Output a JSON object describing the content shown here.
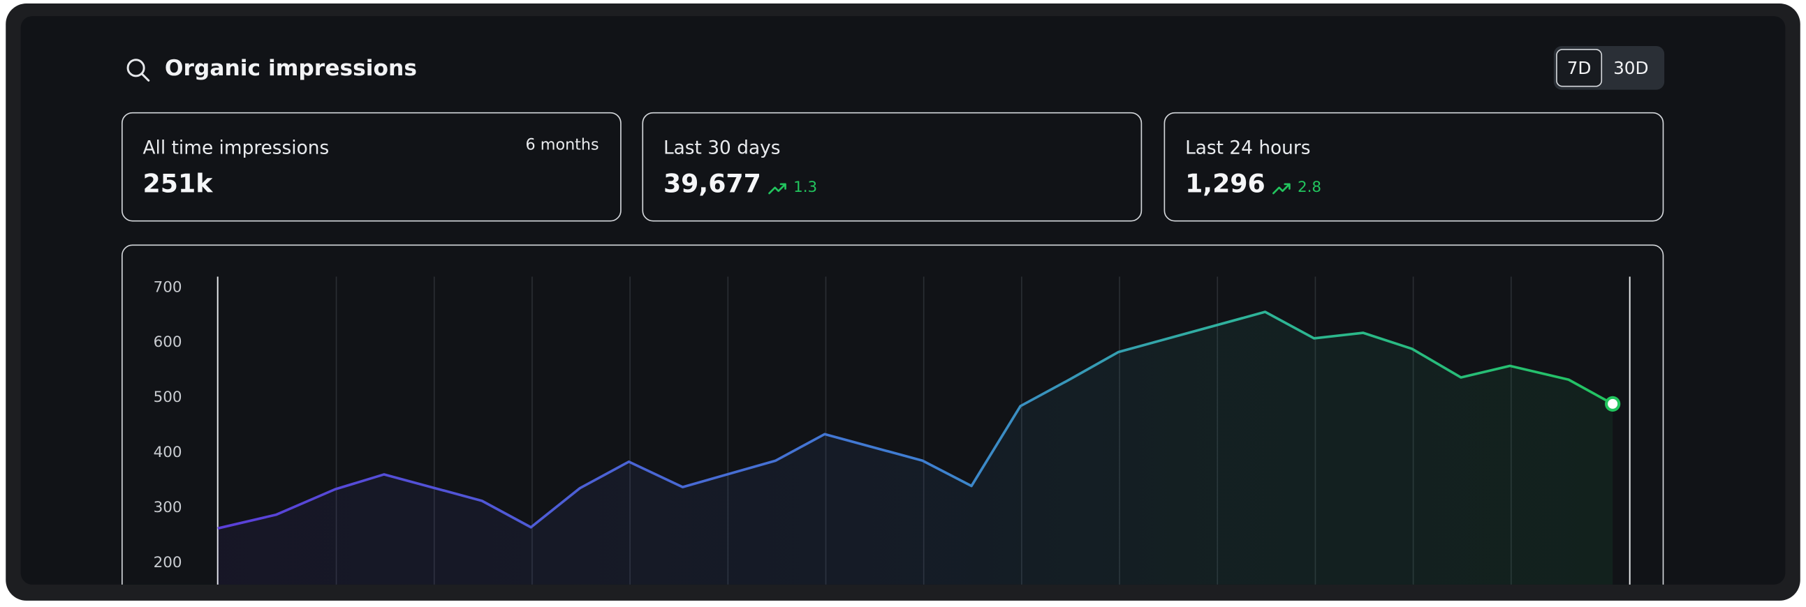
{
  "header": {
    "title": "Organic impressions",
    "ranges": [
      "7D",
      "30D"
    ],
    "selected_range": 0
  },
  "cards": [
    {
      "label": "All time impressions",
      "note": "6 months",
      "value": "251k"
    },
    {
      "label": "Last 30 days",
      "value": "39,677",
      "change": "1.3"
    },
    {
      "label": "Last 24 hours",
      "value": "1,296",
      "change": "2.8"
    }
  ],
  "chart_data": {
    "type": "line",
    "x": [
      0,
      1.2,
      2.4,
      3.4,
      5.4,
      6.4,
      7.4,
      8.4,
      9.5,
      11.4,
      12.4,
      14.4,
      15.4,
      16.4,
      17.4,
      18.4,
      21.4,
      22.4,
      23.4,
      24.4,
      25.4,
      26.4,
      27.6,
      28.5
    ],
    "values": [
      263,
      288,
      334,
      361,
      313,
      265,
      336,
      384,
      338,
      386,
      434,
      386,
      340,
      485,
      533,
      583,
      656,
      608,
      618,
      589,
      537,
      558,
      533,
      489
    ],
    "xlim": [
      0,
      28.85
    ],
    "ylim": [
      160,
      720
    ],
    "yticks": [
      200,
      300,
      400,
      500,
      600,
      700
    ],
    "gradient": [
      "#5b3fd9",
      "#3f7fd2",
      "#2fb39c",
      "#22c55e"
    ]
  }
}
